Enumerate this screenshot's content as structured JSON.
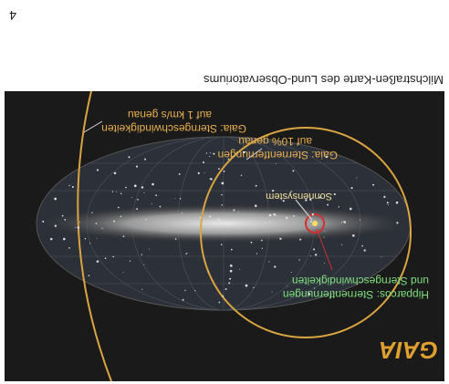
{
  "page_number": "4",
  "caption": "Milchstraßen-Karte des Lund-Observatoriums",
  "figure": {
    "logo": "GAIA",
    "labels": [
      {
        "line1": "Hipparcos: Sternentfernungen",
        "line2": "und Sterngeschwindigkeiten"
      },
      {
        "line1": "Sonnensystem"
      },
      {
        "line1": "Gaia: Sternentfernungen",
        "line2": "auf 10% genau"
      },
      {
        "line1": "Gaia: Sterngeschwindigkeiten",
        "line2": "auf 1 km/s genau"
      }
    ]
  }
}
